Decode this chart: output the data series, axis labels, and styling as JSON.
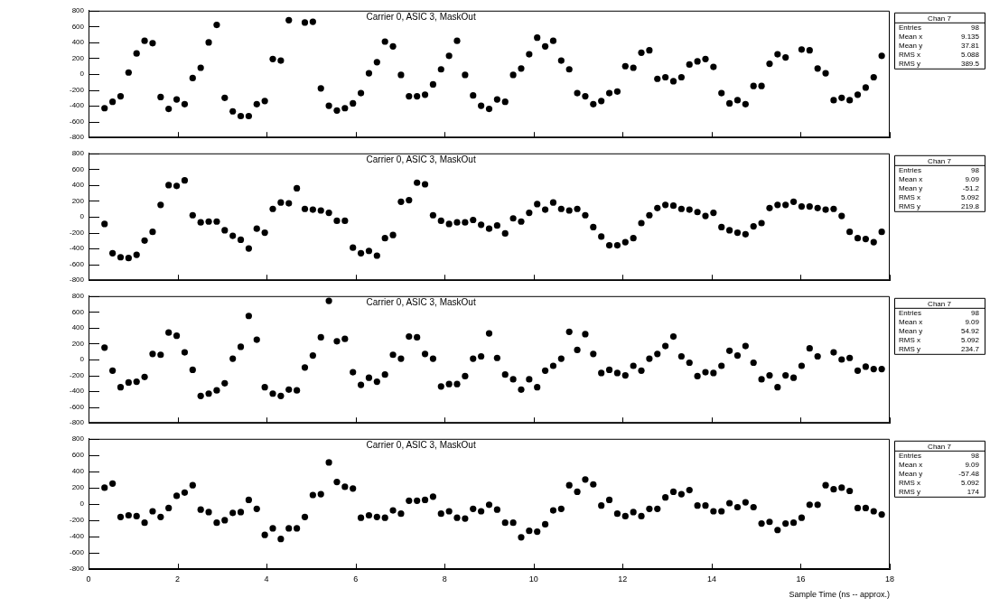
{
  "chart_data": [
    {
      "type": "scatter",
      "title": "Carrier 0, ASIC 3, MaskOut",
      "marker": "circle",
      "tick_labels": "y",
      "xlim": [
        0,
        18
      ],
      "xticks": [
        0,
        2,
        4,
        6,
        8,
        10,
        12,
        14,
        16,
        18
      ],
      "ylim": [
        -800,
        800
      ],
      "yticks": [
        -800,
        -600,
        -400,
        -200,
        0,
        200,
        400,
        600,
        800
      ],
      "x": [
        0.36,
        0.54,
        0.72,
        0.9,
        1.08,
        1.26,
        1.44,
        1.62,
        1.8,
        1.98,
        2.16,
        2.34,
        2.52,
        2.7,
        2.88,
        3.06,
        3.24,
        3.42,
        3.6,
        3.78,
        3.96,
        4.14,
        4.32,
        4.5,
        4.68,
        4.86,
        5.04,
        5.22,
        5.4,
        5.58,
        5.76,
        5.94,
        6.12,
        6.3,
        6.48,
        6.66,
        6.84,
        7.02,
        7.2,
        7.38,
        7.56,
        7.74,
        7.92,
        8.1,
        8.28,
        8.46,
        8.64,
        8.82,
        9.0,
        9.18,
        9.36,
        9.54,
        9.72,
        9.9,
        10.08,
        10.26,
        10.44,
        10.62,
        10.8,
        10.98,
        11.16,
        11.34,
        11.52,
        11.7,
        11.88,
        12.06,
        12.24,
        12.42,
        12.6,
        12.78,
        12.96,
        13.14,
        13.32,
        13.5,
        13.68,
        13.86,
        14.04,
        14.22,
        14.4,
        14.58,
        14.76,
        14.94,
        15.12,
        15.3,
        15.48,
        15.66,
        15.84,
        16.02,
        16.2,
        16.38,
        16.56,
        16.74,
        16.92,
        17.1,
        17.28,
        17.46,
        17.64,
        17.82
      ],
      "series": [
        {
          "color": "#000000",
          "values": [
            -430,
            -350,
            -280,
            20,
            260,
            420,
            390,
            -290,
            -440,
            -320,
            -380,
            -50,
            80,
            400,
            620,
            -300,
            -470,
            -530,
            -530,
            -380,
            -340,
            190,
            170,
            680,
            null,
            650,
            660,
            -180,
            -400,
            -460,
            -430,
            -370,
            -240,
            10,
            150,
            410,
            350,
            -10,
            -280,
            -280,
            -260,
            -130,
            60,
            230,
            420,
            -10,
            -270,
            -400,
            -440,
            -320,
            -350,
            -10,
            70,
            250,
            460,
            350,
            420,
            170,
            60,
            -240,
            -280,
            -380,
            -340,
            -240,
            -220,
            100,
            80,
            270,
            300,
            -60,
            -40,
            -90,
            -40,
            120,
            160,
            190,
            90,
            -240,
            -370,
            -330,
            -380,
            -150,
            -150,
            130,
            250,
            210,
            null,
            310,
            300,
            70,
            10,
            -330,
            -300,
            -330,
            -260,
            -170,
            -40,
            230
          ]
        }
      ],
      "annotations": [
        "Chan 7",
        "Entries 98",
        "Mean x 9.135",
        "Mean y 37.81",
        "RMS x 5.088",
        "RMS y 389.5"
      ]
    },
    {
      "type": "scatter",
      "title": "Carrier 0, ASIC 3, MaskOut",
      "marker": "circle",
      "tick_labels": "y",
      "xlim": [
        0,
        18
      ],
      "xticks": [
        0,
        2,
        4,
        6,
        8,
        10,
        12,
        14,
        16,
        18
      ],
      "ylim": [
        -800,
        800
      ],
      "yticks": [
        -800,
        -600,
        -400,
        -200,
        0,
        200,
        400,
        600,
        800
      ],
      "x": [
        0.36,
        0.54,
        0.72,
        0.9,
        1.08,
        1.26,
        1.44,
        1.62,
        1.8,
        1.98,
        2.16,
        2.34,
        2.52,
        2.7,
        2.88,
        3.06,
        3.24,
        3.42,
        3.6,
        3.78,
        3.96,
        4.14,
        4.32,
        4.5,
        4.68,
        4.86,
        5.04,
        5.22,
        5.4,
        5.58,
        5.76,
        5.94,
        6.12,
        6.3,
        6.48,
        6.66,
        6.84,
        7.02,
        7.2,
        7.38,
        7.56,
        7.74,
        7.92,
        8.1,
        8.28,
        8.46,
        8.64,
        8.82,
        9.0,
        9.18,
        9.36,
        9.54,
        9.72,
        9.9,
        10.08,
        10.26,
        10.44,
        10.62,
        10.8,
        10.98,
        11.16,
        11.34,
        11.52,
        11.7,
        11.88,
        12.06,
        12.24,
        12.42,
        12.6,
        12.78,
        12.96,
        13.14,
        13.32,
        13.5,
        13.68,
        13.86,
        14.04,
        14.22,
        14.4,
        14.58,
        14.76,
        14.94,
        15.12,
        15.3,
        15.48,
        15.66,
        15.84,
        16.02,
        16.2,
        16.38,
        16.56,
        16.74,
        16.92,
        17.1,
        17.28,
        17.46,
        17.64,
        17.82
      ],
      "series": [
        {
          "color": "#000000",
          "values": [
            -90,
            -460,
            -510,
            -520,
            -480,
            -300,
            -190,
            150,
            400,
            390,
            460,
            20,
            -70,
            -60,
            -60,
            -170,
            -240,
            -290,
            -400,
            -150,
            -200,
            100,
            180,
            170,
            360,
            100,
            90,
            80,
            50,
            -50,
            -50,
            -390,
            -460,
            -430,
            -490,
            -270,
            -230,
            190,
            210,
            430,
            410,
            20,
            -50,
            -90,
            -70,
            -70,
            -40,
            -100,
            -150,
            -110,
            -210,
            -20,
            -60,
            50,
            160,
            90,
            180,
            100,
            80,
            100,
            20,
            -130,
            -250,
            -360,
            -360,
            -320,
            -270,
            -80,
            20,
            110,
            150,
            140,
            100,
            90,
            60,
            10,
            50,
            -130,
            -170,
            -200,
            -220,
            -120,
            -80,
            110,
            150,
            150,
            190,
            130,
            130,
            110,
            90,
            100,
            10,
            -190,
            -270,
            -280,
            -320,
            -190
          ]
        }
      ],
      "annotations": [
        "Chan 7",
        "Entries 98",
        "Mean x 9.09",
        "Mean y -51.2",
        "RMS x 5.092",
        "RMS y 219.8"
      ]
    },
    {
      "type": "scatter",
      "title": "Carrier 0, ASIC 3, MaskOut",
      "marker": "circle",
      "tick_labels": "y",
      "xlim": [
        0,
        18
      ],
      "xticks": [
        0,
        2,
        4,
        6,
        8,
        10,
        12,
        14,
        16,
        18
      ],
      "ylim": [
        -800,
        800
      ],
      "yticks": [
        -800,
        -600,
        -400,
        -200,
        0,
        200,
        400,
        600,
        800
      ],
      "x": [
        0.36,
        0.54,
        0.72,
        0.9,
        1.08,
        1.26,
        1.44,
        1.62,
        1.8,
        1.98,
        2.16,
        2.34,
        2.52,
        2.7,
        2.88,
        3.06,
        3.24,
        3.42,
        3.6,
        3.78,
        3.96,
        4.14,
        4.32,
        4.5,
        4.68,
        4.86,
        5.04,
        5.22,
        5.4,
        5.58,
        5.76,
        5.94,
        6.12,
        6.3,
        6.48,
        6.66,
        6.84,
        7.02,
        7.2,
        7.38,
        7.56,
        7.74,
        7.92,
        8.1,
        8.28,
        8.46,
        8.64,
        8.82,
        9.0,
        9.18,
        9.36,
        9.54,
        9.72,
        9.9,
        10.08,
        10.26,
        10.44,
        10.62,
        10.8,
        10.98,
        11.16,
        11.34,
        11.52,
        11.7,
        11.88,
        12.06,
        12.24,
        12.42,
        12.6,
        12.78,
        12.96,
        13.14,
        13.32,
        13.5,
        13.68,
        13.86,
        14.04,
        14.22,
        14.4,
        14.58,
        14.76,
        14.94,
        15.12,
        15.3,
        15.48,
        15.66,
        15.84,
        16.02,
        16.2,
        16.38,
        16.56,
        16.74,
        16.92,
        17.1,
        17.28,
        17.46,
        17.64,
        17.82
      ],
      "series": [
        {
          "color": "#000000",
          "values": [
            150,
            -140,
            -350,
            -290,
            -280,
            -220,
            70,
            60,
            340,
            300,
            90,
            -130,
            -460,
            -430,
            -390,
            -300,
            10,
            160,
            550,
            250,
            -350,
            -430,
            -460,
            -380,
            -390,
            -100,
            50,
            280,
            740,
            230,
            260,
            -160,
            -320,
            -230,
            -280,
            -190,
            60,
            10,
            290,
            280,
            70,
            10,
            -340,
            -310,
            -310,
            -210,
            10,
            40,
            330,
            20,
            -190,
            -250,
            -380,
            -250,
            -350,
            -140,
            -80,
            10,
            350,
            120,
            320,
            70,
            -170,
            -130,
            -170,
            -200,
            -80,
            -140,
            10,
            70,
            170,
            290,
            40,
            -40,
            -210,
            -160,
            -170,
            -80,
            110,
            50,
            170,
            -40,
            -250,
            -200,
            -350,
            -200,
            -230,
            -80,
            140,
            40,
            null,
            90,
            0,
            20,
            -140,
            -90,
            -120,
            -120
          ]
        }
      ],
      "annotations": [
        "Chan 7",
        "Entries 98",
        "Mean x 9.09",
        "Mean y 54.92",
        "RMS x 5.092",
        "RMS y 234.7"
      ]
    },
    {
      "type": "scatter",
      "title": "Carrier 0, ASIC 3, MaskOut",
      "xlabel": "Sample Time (ns -- approx.)",
      "marker": "circle",
      "xlim": [
        0,
        18
      ],
      "xticks": [
        0,
        2,
        4,
        6,
        8,
        10,
        12,
        14,
        16,
        18
      ],
      "ylim": [
        -800,
        800
      ],
      "yticks": [
        -800,
        -600,
        -400,
        -200,
        0,
        200,
        400,
        600,
        800
      ],
      "x": [
        0.36,
        0.54,
        0.72,
        0.9,
        1.08,
        1.26,
        1.44,
        1.62,
        1.8,
        1.98,
        2.16,
        2.34,
        2.52,
        2.7,
        2.88,
        3.06,
        3.24,
        3.42,
        3.6,
        3.78,
        3.96,
        4.14,
        4.32,
        4.5,
        4.68,
        4.86,
        5.04,
        5.22,
        5.4,
        5.58,
        5.76,
        5.94,
        6.12,
        6.3,
        6.48,
        6.66,
        6.84,
        7.02,
        7.2,
        7.38,
        7.56,
        7.74,
        7.92,
        8.1,
        8.28,
        8.46,
        8.64,
        8.82,
        9.0,
        9.18,
        9.36,
        9.54,
        9.72,
        9.9,
        10.08,
        10.26,
        10.44,
        10.62,
        10.8,
        10.98,
        11.16,
        11.34,
        11.52,
        11.7,
        11.88,
        12.06,
        12.24,
        12.42,
        12.6,
        12.78,
        12.96,
        13.14,
        13.32,
        13.5,
        13.68,
        13.86,
        14.04,
        14.22,
        14.4,
        14.58,
        14.76,
        14.94,
        15.12,
        15.3,
        15.48,
        15.66,
        15.84,
        16.02,
        16.2,
        16.38,
        16.56,
        16.74,
        16.92,
        17.1,
        17.28,
        17.46,
        17.64,
        17.82
      ],
      "series": [
        {
          "color": "#000000",
          "values": [
            200,
            250,
            -160,
            -140,
            -150,
            -230,
            -90,
            -160,
            -50,
            100,
            140,
            230,
            -70,
            -100,
            -230,
            -200,
            -110,
            -100,
            50,
            -60,
            -380,
            -300,
            -430,
            -300,
            -300,
            -160,
            110,
            120,
            510,
            270,
            210,
            190,
            -170,
            -140,
            -160,
            -170,
            -80,
            -120,
            40,
            40,
            50,
            90,
            -120,
            -90,
            -170,
            -180,
            -60,
            -90,
            -10,
            -70,
            -230,
            -230,
            -410,
            -330,
            -340,
            -250,
            -80,
            -60,
            230,
            150,
            300,
            240,
            -20,
            50,
            -120,
            -150,
            -100,
            -150,
            -60,
            -60,
            80,
            150,
            120,
            170,
            -20,
            -20,
            -90,
            -90,
            10,
            -40,
            20,
            -40,
            -240,
            -220,
            -320,
            -240,
            -230,
            -170,
            -10,
            -10,
            230,
            180,
            200,
            160,
            -50,
            -50,
            -90,
            -130
          ]
        }
      ],
      "annotations": [
        "Chan 7",
        "Entries 98",
        "Mean x 9.09",
        "Mean y -57.48",
        "RMS x 5.092",
        "RMS y 174"
      ]
    }
  ]
}
